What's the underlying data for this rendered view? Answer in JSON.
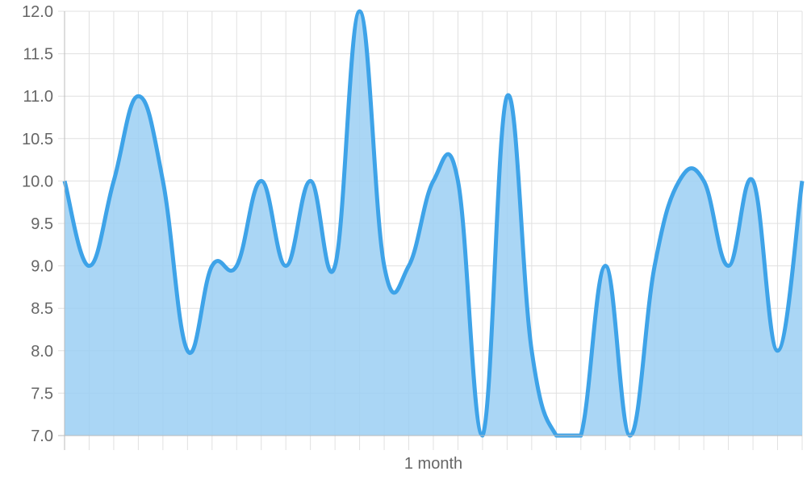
{
  "chart_data": {
    "type": "area",
    "title": "",
    "xlabel": "",
    "ylabel": "",
    "x_tick_labels": [
      "1 month"
    ],
    "point_count": 31,
    "values": [
      10,
      9,
      10,
      11,
      10,
      8,
      9,
      9,
      10,
      9,
      10,
      9,
      12,
      9,
      9,
      10,
      10,
      7,
      11,
      8,
      7,
      7,
      9,
      7,
      9,
      10,
      10,
      9,
      10,
      8,
      10
    ],
    "ylim": [
      7,
      12
    ],
    "y_ticks": [
      "7.0",
      "7.5",
      "8.0",
      "8.5",
      "9.0",
      "9.5",
      "10.0",
      "10.5",
      "11.0",
      "11.5",
      "12.0"
    ],
    "grid": true,
    "legend": "none",
    "colors": {
      "line": "#3ea3e8",
      "fill": "#9bcff3",
      "grid": "#e0e0e0"
    }
  }
}
